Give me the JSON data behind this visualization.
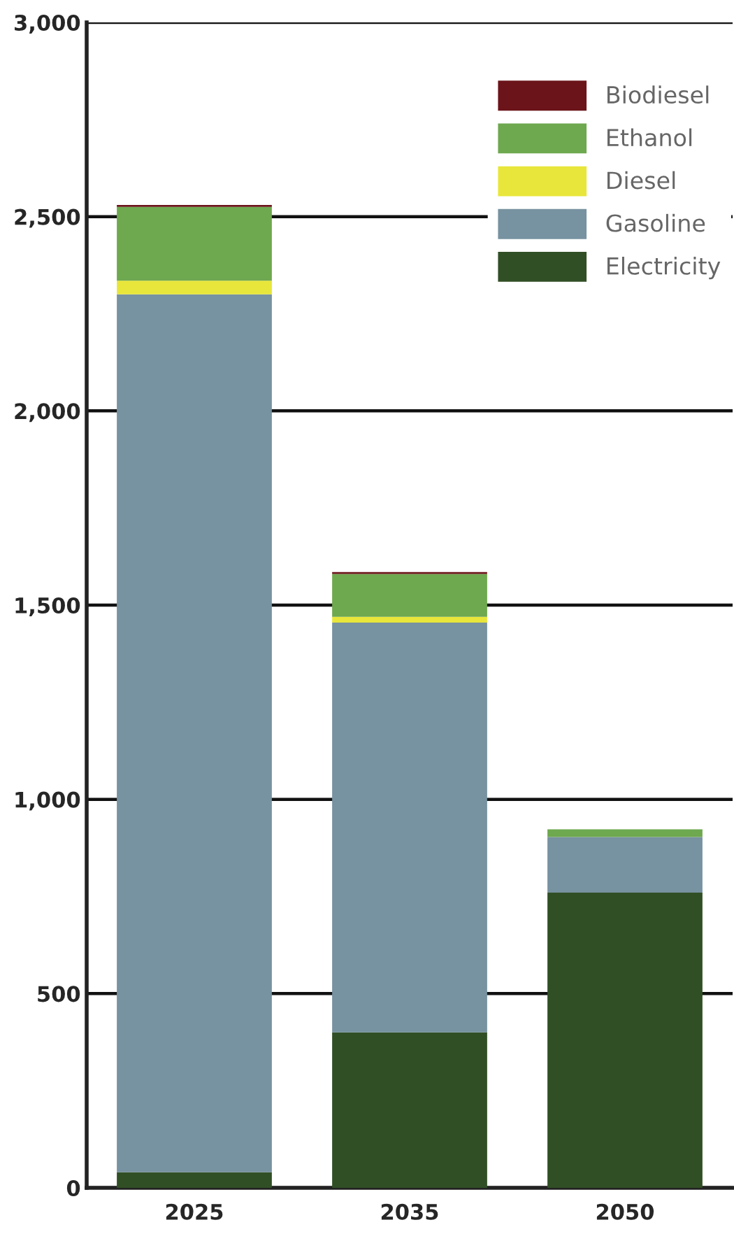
{
  "chart_data": {
    "type": "bar",
    "stacked": true,
    "categories": [
      "2025",
      "2035",
      "2050"
    ],
    "series": [
      {
        "name": "Electricity",
        "color": "#314f25",
        "values": [
          40,
          400,
          760
        ]
      },
      {
        "name": "Gasoline",
        "color": "#7792a0",
        "values": [
          2260,
          1055,
          143
        ]
      },
      {
        "name": "Diesel",
        "color": "#e8e63a",
        "values": [
          35,
          15,
          0
        ]
      },
      {
        "name": "Ethanol",
        "color": "#6ea84f",
        "values": [
          190,
          110,
          20
        ]
      },
      {
        "name": "Biodiesel",
        "color": "#6b1419",
        "values": [
          5,
          5,
          0
        ]
      }
    ],
    "ylim": [
      0,
      3000
    ],
    "yticks": [
      {
        "value": 0,
        "label": "0"
      },
      {
        "value": 500,
        "label": "500"
      },
      {
        "value": 1000,
        "label": "1,000"
      },
      {
        "value": 1500,
        "label": "1,500"
      },
      {
        "value": 2000,
        "label": "2,000"
      },
      {
        "value": 2500,
        "label": "2,500"
      },
      {
        "value": 3000,
        "label": "3,000"
      }
    ],
    "grid": "y",
    "legend": "top right"
  }
}
